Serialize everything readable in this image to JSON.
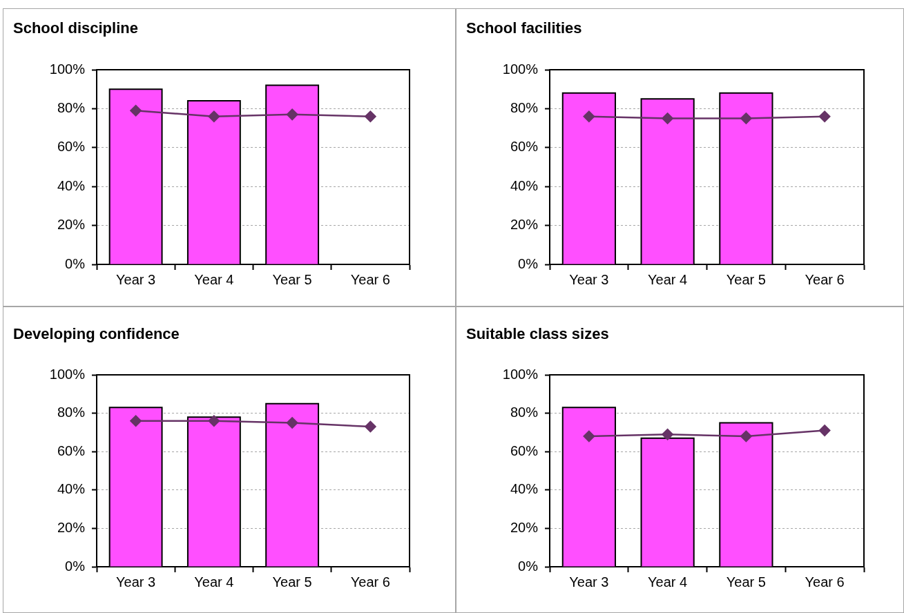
{
  "chart_data": [
    {
      "type": "bar",
      "title": "School discipline",
      "categories": [
        "Year 3",
        "Year 4",
        "Year 5",
        "Year 6"
      ],
      "series": [
        {
          "color": "#ff4fff",
          "values": [
            90,
            84,
            92,
            null
          ]
        },
        {
          "type": "line",
          "color": "#663366",
          "marker": "diamond",
          "values": [
            79,
            76,
            77,
            76
          ]
        }
      ],
      "ylim": [
        0,
        100
      ],
      "yticks": [
        {
          "value": 0,
          "label": "0%"
        },
        {
          "value": 20,
          "label": "20%"
        },
        {
          "value": 40,
          "label": "40%"
        },
        {
          "value": 60,
          "label": "60%"
        },
        {
          "value": 80,
          "label": "80%"
        },
        {
          "value": 100,
          "label": "100%"
        }
      ],
      "grid": "y"
    },
    {
      "type": "bar",
      "title": "School facilities",
      "categories": [
        "Year 3",
        "Year 4",
        "Year 5",
        "Year 6"
      ],
      "series": [
        {
          "color": "#ff4fff",
          "values": [
            88,
            85,
            88,
            null
          ]
        },
        {
          "type": "line",
          "color": "#663366",
          "marker": "diamond",
          "values": [
            76,
            75,
            75,
            76
          ]
        }
      ],
      "ylim": [
        0,
        100
      ],
      "yticks": [
        {
          "value": 0,
          "label": "0%"
        },
        {
          "value": 20,
          "label": "20%"
        },
        {
          "value": 40,
          "label": "40%"
        },
        {
          "value": 60,
          "label": "60%"
        },
        {
          "value": 80,
          "label": "80%"
        },
        {
          "value": 100,
          "label": "100%"
        }
      ],
      "grid": "y"
    },
    {
      "type": "bar",
      "title": "Developing confidence",
      "categories": [
        "Year 3",
        "Year 4",
        "Year 5",
        "Year 6"
      ],
      "series": [
        {
          "color": "#ff4fff",
          "values": [
            83,
            78,
            85,
            null
          ]
        },
        {
          "type": "line",
          "color": "#663366",
          "marker": "diamond",
          "values": [
            76,
            76,
            75,
            73
          ]
        }
      ],
      "ylim": [
        0,
        100
      ],
      "yticks": [
        {
          "value": 0,
          "label": "0%"
        },
        {
          "value": 20,
          "label": "20%"
        },
        {
          "value": 40,
          "label": "40%"
        },
        {
          "value": 60,
          "label": "60%"
        },
        {
          "value": 80,
          "label": "80%"
        },
        {
          "value": 100,
          "label": "100%"
        }
      ],
      "grid": "y"
    },
    {
      "type": "bar",
      "title": "Suitable class sizes",
      "categories": [
        "Year 3",
        "Year 4",
        "Year 5",
        "Year 6"
      ],
      "series": [
        {
          "color": "#ff4fff",
          "values": [
            83,
            67,
            75,
            null
          ]
        },
        {
          "type": "line",
          "color": "#663366",
          "marker": "diamond",
          "values": [
            68,
            69,
            68,
            71
          ]
        }
      ],
      "ylim": [
        0,
        100
      ],
      "yticks": [
        {
          "value": 0,
          "label": "0%"
        },
        {
          "value": 20,
          "label": "20%"
        },
        {
          "value": 40,
          "label": "40%"
        },
        {
          "value": 60,
          "label": "60%"
        },
        {
          "value": 80,
          "label": "80%"
        },
        {
          "value": 100,
          "label": "100%"
        }
      ],
      "grid": "y"
    }
  ]
}
